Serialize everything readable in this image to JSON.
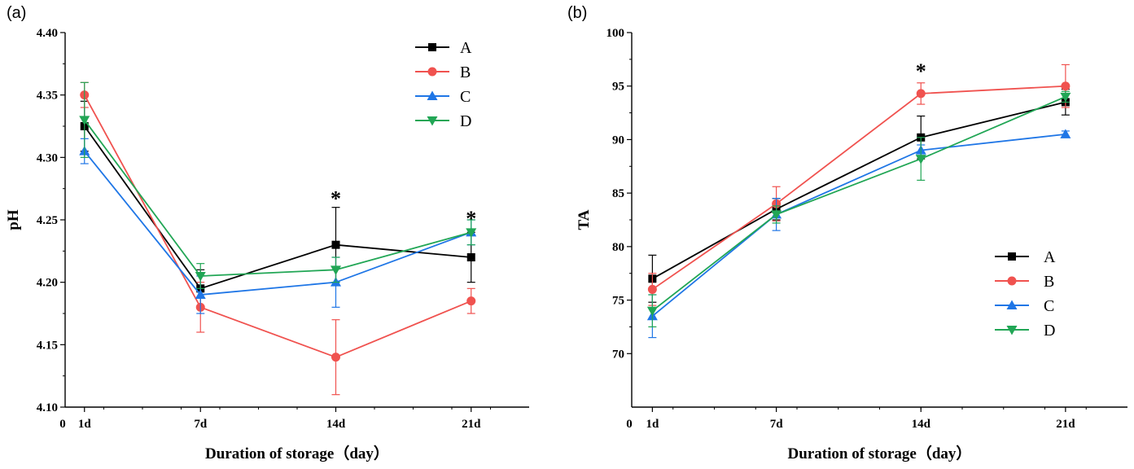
{
  "chart_data": [
    {
      "panel_label": "(a)",
      "type": "line",
      "xlabel": "Duration of storage（day）",
      "ylabel": "pH",
      "x_origin_label": "0",
      "categories": [
        "1d",
        "7d",
        "14d",
        "21d"
      ],
      "x": [
        1,
        7,
        14,
        21
      ],
      "xlim": [
        0,
        24
      ],
      "ylim": [
        4.1,
        4.4
      ],
      "yticks": [
        "4.10",
        "4.15",
        "4.20",
        "4.25",
        "4.30",
        "4.35",
        "4.40"
      ],
      "grid": false,
      "legend_position": "top-right",
      "significance": [
        {
          "x": 14,
          "y": 4.268,
          "label": "*"
        },
        {
          "x": 21,
          "y": 4.252,
          "label": "*"
        }
      ],
      "series": [
        {
          "name": "A",
          "color": "#000000",
          "marker": "square",
          "values": [
            4.325,
            4.195,
            4.23,
            4.22
          ],
          "errors": [
            0.02,
            0.015,
            0.03,
            0.02
          ]
        },
        {
          "name": "B",
          "color": "#f0524f",
          "marker": "circle",
          "values": [
            4.35,
            4.18,
            4.14,
            4.185
          ],
          "errors": [
            0.01,
            0.02,
            0.03,
            0.01
          ]
        },
        {
          "name": "C",
          "color": "#1f76e6",
          "marker": "triangle-up",
          "values": [
            4.305,
            4.19,
            4.2,
            4.24
          ],
          "errors": [
            0.01,
            0.015,
            0.02,
            0.01
          ]
        },
        {
          "name": "D",
          "color": "#21a655",
          "marker": "triangle-down",
          "values": [
            4.33,
            4.205,
            4.21,
            4.24
          ],
          "errors": [
            0.03,
            0.01,
            0.01,
            0.01
          ]
        }
      ]
    },
    {
      "panel_label": "(b)",
      "type": "line",
      "xlabel": "Duration of storage（day）",
      "ylabel": "TA",
      "x_origin_label": "0",
      "categories": [
        "1d",
        "7d",
        "14d",
        "21d"
      ],
      "x": [
        1,
        7,
        14,
        21
      ],
      "xlim": [
        0,
        24
      ],
      "ylim": [
        65,
        100
      ],
      "yticks": [
        "70",
        "75",
        "80",
        "85",
        "90",
        "95",
        "100"
      ],
      "grid": false,
      "legend_position": "bottom-right",
      "significance": [
        {
          "x": 14,
          "y": 96.5,
          "label": "*"
        }
      ],
      "series": [
        {
          "name": "A",
          "color": "#000000",
          "marker": "square",
          "values": [
            77.0,
            83.5,
            90.2,
            93.5
          ],
          "errors": [
            2.2,
            1.0,
            2.0,
            1.2
          ]
        },
        {
          "name": "B",
          "color": "#f0524f",
          "marker": "circle",
          "values": [
            76.0,
            84.0,
            94.3,
            95.0
          ],
          "errors": [
            1.5,
            1.6,
            1.0,
            2.0
          ]
        },
        {
          "name": "C",
          "color": "#1f76e6",
          "marker": "triangle-up",
          "values": [
            73.5,
            83.0,
            89.0,
            90.5
          ],
          "errors": [
            2.0,
            1.5,
            0.5,
            0.3
          ]
        },
        {
          "name": "D",
          "color": "#21a655",
          "marker": "triangle-down",
          "values": [
            74.0,
            83.0,
            88.2,
            94.0
          ],
          "errors": [
            1.5,
            0.8,
            2.0,
            0.5
          ]
        }
      ]
    }
  ]
}
